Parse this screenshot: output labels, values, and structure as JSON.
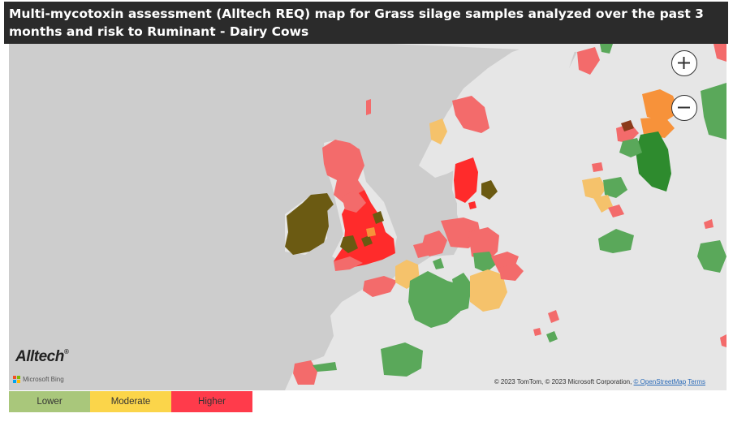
{
  "title": "Multi-mycotoxin assessment (Alltech REQ) map for Grass silage samples analyzed over the past 3 months and risk to Ruminant - Dairy Cows",
  "map": {
    "brand": "Alltech",
    "provider": "Microsoft Bing",
    "attribution_text": "© 2023 TomTom, © 2023 Microsoft Corporation,",
    "attribution_link": "© OpenStreetMap",
    "terms_link": "Terms",
    "zoom_in_icon": "plus-icon",
    "zoom_out_icon": "minus-icon",
    "colors": {
      "sea": "#cdcdcd",
      "land": "#e6e6e6",
      "lower": "#5aa85a",
      "lower_dark": "#2e8b2e",
      "moderate": "#f5c26b",
      "moderate_orange": "#f7923a",
      "higher": "#ff2b2b",
      "higher_light": "#f36b6b",
      "olive": "#6b5a12",
      "olive_green": "#5f7a20"
    }
  },
  "legend": [
    {
      "label": "Lower",
      "color": "#a9c77b"
    },
    {
      "label": "Moderate",
      "color": "#fbd54a"
    },
    {
      "label": "Higher",
      "color": "#ff3b4b"
    }
  ]
}
